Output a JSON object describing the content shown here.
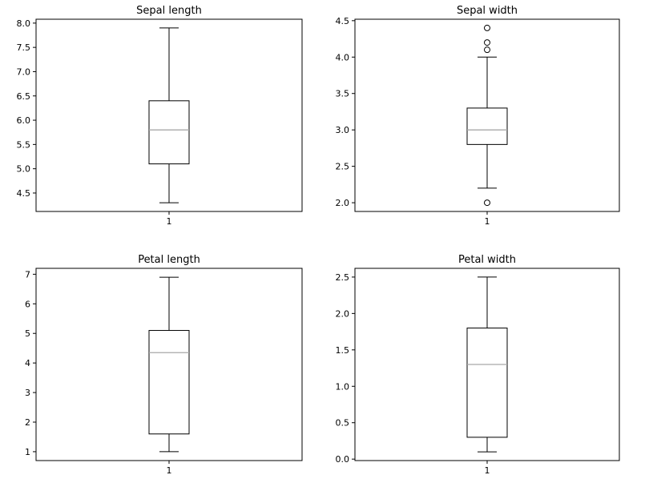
{
  "chart_data": [
    {
      "type": "boxplot",
      "title": "Sepal length",
      "categories": [
        "1"
      ],
      "ylim": [
        4.12,
        8.08
      ],
      "yticks": [
        "4.5",
        "5.0",
        "5.5",
        "6.0",
        "6.5",
        "7.0",
        "7.5",
        "8.0"
      ],
      "box": {
        "whisker_low": 4.3,
        "q1": 5.1,
        "median": 5.8,
        "q3": 6.4,
        "whisker_high": 7.9
      },
      "outliers": []
    },
    {
      "type": "boxplot",
      "title": "Sepal width",
      "categories": [
        "1"
      ],
      "ylim": [
        1.88,
        4.52
      ],
      "yticks": [
        "2.0",
        "2.5",
        "3.0",
        "3.5",
        "4.0",
        "4.5"
      ],
      "box": {
        "whisker_low": 2.2,
        "q1": 2.8,
        "median": 3.0,
        "q3": 3.3,
        "whisker_high": 4.0
      },
      "outliers": [
        4.4,
        4.2,
        4.1,
        2.0
      ]
    },
    {
      "type": "boxplot",
      "title": "Petal length",
      "categories": [
        "1"
      ],
      "ylim": [
        0.7,
        7.2
      ],
      "yticks": [
        "1",
        "2",
        "3",
        "4",
        "5",
        "6",
        "7"
      ],
      "box": {
        "whisker_low": 1.0,
        "q1": 1.6,
        "median": 4.35,
        "q3": 5.1,
        "whisker_high": 6.9
      },
      "outliers": []
    },
    {
      "type": "boxplot",
      "title": "Petal width",
      "categories": [
        "1"
      ],
      "ylim": [
        -0.02,
        2.62
      ],
      "yticks": [
        "0.0",
        "0.5",
        "1.0",
        "1.5",
        "2.0",
        "2.5"
      ],
      "box": {
        "whisker_low": 0.1,
        "q1": 0.3,
        "median": 1.3,
        "q3": 1.8,
        "whisker_high": 2.5
      },
      "outliers": []
    }
  ]
}
